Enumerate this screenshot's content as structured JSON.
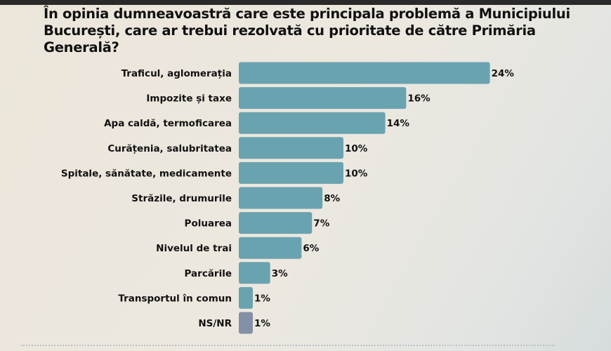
{
  "chart_data": {
    "type": "bar",
    "orientation": "horizontal",
    "title": "În opinia dumneavoastră care este principala problemă a Municipiului București, care ar trebui rezolvată cu prioritate de către Primăria Generală?",
    "categories": [
      "Traficul, aglomerația",
      "Impozite și taxe",
      "Apa caldă, termoficarea",
      "Curățenia, salubritatea",
      "Spitale, sănătate, medicamente",
      "Străzile, drumurile",
      "Poluarea",
      "Nivelul de trai",
      "Parcările",
      "Transportul în comun",
      "NS/NR"
    ],
    "values": [
      24,
      16,
      14,
      10,
      10,
      8,
      7,
      6,
      3,
      1,
      1
    ],
    "value_labels": [
      "24%",
      "16%",
      "14%",
      "10%",
      "10%",
      "8%",
      "7%",
      "6%",
      "3%",
      "1%",
      "1%"
    ],
    "unit": "%",
    "grid": false,
    "colors": {
      "bar": "#6aa3b0",
      "ns_nr": "#8490a5"
    }
  }
}
